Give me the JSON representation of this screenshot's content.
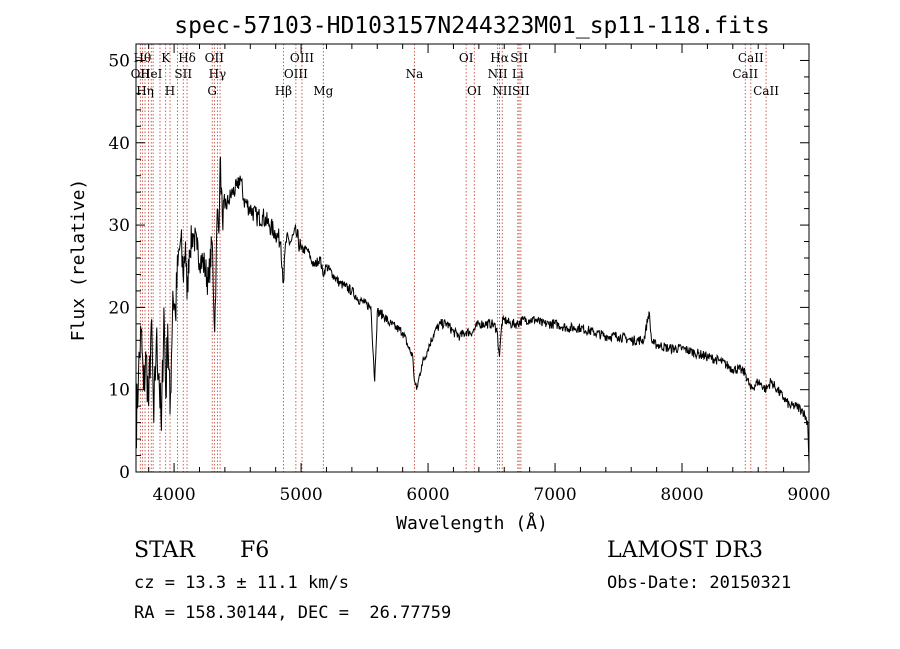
{
  "chart_data": {
    "type": "line",
    "title": "spec-57103-HD103157N244323M01_sp11-118.fits",
    "xlabel": "Wavelength (Å)",
    "ylabel": "Flux (relative)",
    "xlim": [
      3700,
      9000
    ],
    "ylim": [
      0,
      52
    ],
    "xticks": [
      4000,
      5000,
      6000,
      7000,
      8000,
      9000
    ],
    "yticks": [
      0,
      10,
      20,
      30,
      40,
      50
    ],
    "line_color": "#000000",
    "marker_color": "#c0392b",
    "series": [
      {
        "x": [
          3700,
          3720,
          3740,
          3760,
          3780,
          3800,
          3820,
          3840,
          3860,
          3880,
          3900,
          3920,
          3935,
          3950,
          3968,
          3990,
          4010,
          4030,
          4050,
          4070,
          4090,
          4102,
          4120,
          4150,
          4180,
          4210,
          4240,
          4270,
          4300,
          4320,
          4340,
          4352,
          4362,
          4380,
          4400,
          4430,
          4460,
          4500,
          4520,
          4550,
          4600,
          4650,
          4700,
          4750,
          4800,
          4840,
          4861,
          4880,
          4920,
          4960,
          5000,
          5050,
          5100,
          5150,
          5172,
          5200,
          5250,
          5300,
          5350,
          5400,
          5450,
          5500,
          5550,
          5580,
          5600,
          5650,
          5700,
          5750,
          5800,
          5850,
          5880,
          5893,
          5910,
          5950,
          6000,
          6050,
          6100,
          6150,
          6200,
          6250,
          6300,
          6350,
          6400,
          6450,
          6500,
          6540,
          6563,
          6580,
          6600,
          6650,
          6700,
          6750,
          6800,
          6850,
          6900,
          6950,
          7000,
          7100,
          7200,
          7300,
          7400,
          7500,
          7600,
          7700,
          7740,
          7760,
          7780,
          7800,
          7900,
          8000,
          8100,
          8200,
          8300,
          8400,
          8450,
          8500,
          8542,
          8600,
          8662,
          8700,
          8750,
          8800,
          8850,
          8900,
          8950,
          8990,
          9000
        ],
        "values": [
          5,
          12,
          17,
          10,
          14,
          8,
          18,
          6,
          16,
          12,
          5,
          20,
          9,
          18,
          7,
          22,
          19,
          25,
          28,
          24,
          28,
          21,
          27,
          29,
          27,
          26,
          25,
          23,
          28,
          17,
          32,
          29,
          38,
          31,
          32,
          33,
          34,
          34.5,
          36,
          33,
          32,
          31,
          31,
          30,
          29,
          28,
          23,
          28,
          28,
          29,
          27,
          27,
          25,
          26,
          24,
          25,
          24,
          23,
          22.5,
          22,
          21,
          20.5,
          20,
          11,
          19.5,
          19,
          18,
          17.5,
          17,
          15,
          14,
          11,
          10,
          13,
          15,
          17,
          18,
          18,
          17,
          16.5,
          17,
          17,
          18,
          18,
          18,
          17.5,
          14,
          18,
          18.5,
          18,
          18,
          18.5,
          18.5,
          18.5,
          18,
          18,
          18,
          17.5,
          17.5,
          17,
          16.5,
          16.5,
          16,
          16,
          19.5,
          16,
          15.5,
          15.5,
          15,
          15,
          14.5,
          14,
          13.5,
          12.5,
          12.5,
          12,
          10,
          11,
          10,
          11,
          10,
          9,
          8,
          8,
          7.5,
          6,
          1
        ]
      }
    ],
    "lines": [
      {
        "x": 3734,
        "label": "OII",
        "row": 2
      },
      {
        "x": 3750,
        "label": "Hθ",
        "row": 1
      },
      {
        "x": 3771,
        "label": "Hη",
        "row": 3
      },
      {
        "x": 3798,
        "label": "",
        "row": 0
      },
      {
        "x": 3820,
        "label": "HeI",
        "row": 2
      },
      {
        "x": 3835,
        "label": "",
        "row": 0
      },
      {
        "x": 3889,
        "label": "",
        "row": 0
      },
      {
        "x": 3934,
        "label": "K",
        "row": 1
      },
      {
        "x": 3968,
        "label": "H",
        "row": 3
      },
      {
        "x": 4026,
        "label": "",
        "row": 0
      },
      {
        "x": 4072,
        "label": "SII",
        "row": 2
      },
      {
        "x": 4102,
        "label": "Hδ",
        "row": 1
      },
      {
        "x": 4300,
        "label": "G",
        "row": 3
      },
      {
        "x": 4317,
        "label": "OII",
        "row": 1
      },
      {
        "x": 4341,
        "label": "Hγ",
        "row": 2
      },
      {
        "x": 4362,
        "label": "",
        "row": 0
      },
      {
        "x": 4861,
        "label": "Hβ",
        "row": 3
      },
      {
        "x": 4959,
        "label": "OIII",
        "row": 2
      },
      {
        "x": 5007,
        "label": "OIII",
        "row": 1
      },
      {
        "x": 5175,
        "label": "Mg",
        "row": 3
      },
      {
        "x": 5893,
        "label": "Na",
        "row": 2
      },
      {
        "x": 6300,
        "label": "OI",
        "row": 1
      },
      {
        "x": 6364,
        "label": "OI",
        "row": 3
      },
      {
        "x": 6548,
        "label": "NII",
        "row": 2
      },
      {
        "x": 6563,
        "label": "Hα",
        "row": 1
      },
      {
        "x": 6584,
        "label": "NII",
        "row": 3
      },
      {
        "x": 6707,
        "label": "Li",
        "row": 2
      },
      {
        "x": 6717,
        "label": "SII",
        "row": 1
      },
      {
        "x": 6731,
        "label": "SII",
        "row": 3
      },
      {
        "x": 8498,
        "label": "CaII",
        "row": 2
      },
      {
        "x": 8542,
        "label": "CaII",
        "row": 1
      },
      {
        "x": 8662,
        "label": "CaII",
        "row": 3
      }
    ]
  },
  "info": {
    "object_class": "STAR",
    "subclass": "F6",
    "survey": "LAMOST DR3",
    "cz": "cz = 13.3 ± 11.1 km/s",
    "obs_date": "Obs-Date: 20150321",
    "coords": "RA = 158.30144, DEC =  26.77759"
  }
}
